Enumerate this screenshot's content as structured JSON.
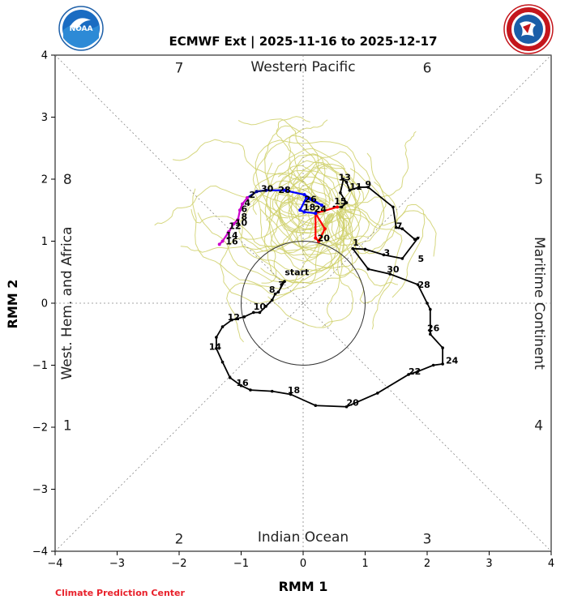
{
  "header": {
    "title": "ECMWF Ext | 2025-11-16 to 2025-12-17"
  },
  "logos": {
    "left": "NOAA",
    "right": "NATIONAL WEATHER SERVICE"
  },
  "footer": {
    "credit": "Climate Prediction Center",
    "credit_color": "#e8202a"
  },
  "chart_data": {
    "type": "line",
    "title": "ECMWF Ext | 2025-11-16 to 2025-12-17",
    "xlabel": "RMM 1",
    "ylabel": "RMM 2",
    "xlim": [
      -4,
      4
    ],
    "ylim": [
      -4,
      4
    ],
    "xticks": [
      -4,
      -3,
      -2,
      -1,
      0,
      1,
      2,
      3,
      4
    ],
    "yticks": [
      -4,
      -3,
      -2,
      -1,
      0,
      1,
      2,
      3,
      4
    ],
    "circle_radius": 1,
    "region_labels": {
      "top": "Western Pacific",
      "bottom": "Indian Ocean",
      "left": "West. Hem. and Africa",
      "right": "Maritime Continent"
    },
    "phase_numbers": [
      {
        "phase": "1",
        "x": -3.8,
        "y": -1.97
      },
      {
        "phase": "2",
        "x": -2.0,
        "y": -3.8
      },
      {
        "phase": "3",
        "x": 2.0,
        "y": -3.8
      },
      {
        "phase": "4",
        "x": 3.8,
        "y": -1.97
      },
      {
        "phase": "5",
        "x": 3.8,
        "y": 2.0
      },
      {
        "phase": "6",
        "x": 2.0,
        "y": 3.8
      },
      {
        "phase": "7",
        "x": -2.0,
        "y": 3.8
      },
      {
        "phase": "8",
        "x": -3.8,
        "y": 2.0
      }
    ],
    "start_label": {
      "text": "start",
      "x": -0.1,
      "y": 0.45
    },
    "colors": {
      "observed": "#000000",
      "ensemble": "#cfd06a",
      "mean_week1": "#ff0000",
      "mean_week2": "#0000ff",
      "mean_week3": "#00008b",
      "mean_week4": "#cc00cc",
      "circle": "#333333",
      "grid": "#888888"
    },
    "series": [
      {
        "name": "observed",
        "points": [
          [
            -0.35,
            0.3
          ],
          [
            -0.3,
            0.35
          ],
          [
            -0.4,
            0.18
          ],
          [
            -0.45,
            0.15
          ],
          [
            -0.5,
            0.05
          ],
          [
            -0.6,
            -0.05
          ],
          [
            -0.7,
            -0.15
          ],
          [
            -0.8,
            -0.15
          ],
          [
            -0.95,
            -0.22
          ],
          [
            -1.15,
            -0.27
          ],
          [
            -1.3,
            -0.38
          ],
          [
            -1.4,
            -0.55
          ],
          [
            -1.4,
            -0.73
          ],
          [
            -1.3,
            -0.95
          ],
          [
            -1.18,
            -1.2
          ],
          [
            -1.0,
            -1.33
          ],
          [
            -0.85,
            -1.4
          ],
          [
            -0.5,
            -1.42
          ],
          [
            -0.2,
            -1.47
          ],
          [
            0.2,
            -1.65
          ],
          [
            0.7,
            -1.67
          ],
          [
            1.2,
            -1.45
          ],
          [
            1.7,
            -1.15
          ],
          [
            1.85,
            -1.1
          ],
          [
            2.1,
            -1.0
          ],
          [
            2.25,
            -0.98
          ],
          [
            2.25,
            -0.72
          ],
          [
            2.05,
            -0.5
          ],
          [
            2.05,
            -0.45
          ],
          [
            2.05,
            -0.1
          ],
          [
            2.0,
            0.0
          ],
          [
            1.85,
            0.3
          ],
          [
            1.4,
            0.47
          ],
          [
            1.05,
            0.55
          ],
          [
            0.8,
            0.88
          ],
          [
            1.0,
            0.87
          ],
          [
            1.3,
            0.78
          ],
          [
            1.6,
            0.72
          ],
          [
            1.85,
            1.05
          ],
          [
            1.8,
            1.03
          ],
          [
            1.6,
            1.2
          ],
          [
            1.5,
            1.22
          ],
          [
            1.45,
            1.55
          ],
          [
            1.05,
            1.87
          ],
          [
            0.9,
            1.87
          ],
          [
            0.75,
            1.82
          ],
          [
            0.7,
            1.95
          ],
          [
            0.65,
            2.0
          ],
          [
            0.6,
            1.78
          ],
          [
            0.7,
            1.62
          ],
          [
            0.62,
            1.55
          ],
          [
            0.5,
            1.55
          ]
        ],
        "labels": [
          {
            "text": "7",
            "x": -0.35,
            "y": 0.3
          },
          {
            "text": "8",
            "x": -0.5,
            "y": 0.22
          },
          {
            "text": "10",
            "x": -0.7,
            "y": -0.05
          },
          {
            "text": "12",
            "x": -1.12,
            "y": -0.22
          },
          {
            "text": "14",
            "x": -1.42,
            "y": -0.7
          },
          {
            "text": "16",
            "x": -0.98,
            "y": -1.28
          },
          {
            "text": "18",
            "x": -0.15,
            "y": -1.4
          },
          {
            "text": "20",
            "x": 0.8,
            "y": -1.6
          },
          {
            "text": "22",
            "x": 1.8,
            "y": -1.1
          },
          {
            "text": "24",
            "x": 2.4,
            "y": -0.92
          },
          {
            "text": "26",
            "x": 2.1,
            "y": -0.4
          },
          {
            "text": "28",
            "x": 1.95,
            "y": 0.3
          },
          {
            "text": "30",
            "x": 1.45,
            "y": 0.55
          },
          {
            "text": "1",
            "x": 0.85,
            "y": 0.98
          },
          {
            "text": "3",
            "x": 1.35,
            "y": 0.82
          },
          {
            "text": "5",
            "x": 1.9,
            "y": 0.72
          },
          {
            "text": "7",
            "x": 1.55,
            "y": 1.25
          },
          {
            "text": "9",
            "x": 1.05,
            "y": 1.92
          },
          {
            "text": "11",
            "x": 0.85,
            "y": 1.88
          },
          {
            "text": "13",
            "x": 0.67,
            "y": 2.03
          },
          {
            "text": "15",
            "x": 0.6,
            "y": 1.65
          }
        ]
      },
      {
        "name": "ensemble_mean",
        "segments": [
          {
            "week": 1,
            "color": "#ff0000",
            "points": [
              [
                0.55,
                1.55
              ],
              [
                0.2,
                1.45
              ],
              [
                0.2,
                1.05
              ],
              [
                0.25,
                1.0
              ],
              [
                0.35,
                1.2
              ],
              [
                0.2,
                1.45
              ]
            ]
          },
          {
            "week": 2,
            "color": "#0000ff",
            "points": [
              [
                0.2,
                1.45
              ],
              [
                0.02,
                1.47
              ],
              [
                -0.05,
                1.5
              ],
              [
                0.05,
                1.7
              ],
              [
                0.3,
                1.58
              ],
              [
                0.02,
                1.75
              ],
              [
                -0.3,
                1.82
              ],
              [
                -0.6,
                1.82
              ]
            ]
          },
          {
            "week": 3,
            "color": "#00008b",
            "points": [
              [
                -0.6,
                1.82
              ],
              [
                -0.75,
                1.8
              ],
              [
                -0.9,
                1.7
              ]
            ]
          },
          {
            "week": 4,
            "color": "#cc00cc",
            "points": [
              [
                -0.9,
                1.7
              ],
              [
                -0.98,
                1.6
              ],
              [
                -1.02,
                1.5
              ],
              [
                -1.05,
                1.35
              ],
              [
                -1.12,
                1.28
              ],
              [
                -1.2,
                1.15
              ],
              [
                -1.3,
                1.0
              ],
              [
                -1.35,
                0.95
              ]
            ]
          }
        ],
        "labels": [
          {
            "text": "18",
            "x": 0.1,
            "y": 1.55
          },
          {
            "text": "24",
            "x": 0.28,
            "y": 1.52
          },
          {
            "text": "20",
            "x": 0.33,
            "y": 1.05
          },
          {
            "text": "26",
            "x": 0.12,
            "y": 1.68
          },
          {
            "text": "28",
            "x": -0.3,
            "y": 1.83
          },
          {
            "text": "30",
            "x": -0.58,
            "y": 1.85
          },
          {
            "text": "2",
            "x": -0.82,
            "y": 1.75
          },
          {
            "text": "4",
            "x": -0.9,
            "y": 1.62
          },
          {
            "text": "6",
            "x": -0.95,
            "y": 1.52
          },
          {
            "text": "8",
            "x": -0.95,
            "y": 1.4
          },
          {
            "text": "10",
            "x": -1.0,
            "y": 1.3
          },
          {
            "text": "12",
            "x": -1.1,
            "y": 1.25
          },
          {
            "text": "14",
            "x": -1.15,
            "y": 1.1
          },
          {
            "text": "16",
            "x": -1.15,
            "y": 1.0
          }
        ]
      }
    ],
    "ensemble_members": 50,
    "grid": false,
    "legend": "none"
  }
}
